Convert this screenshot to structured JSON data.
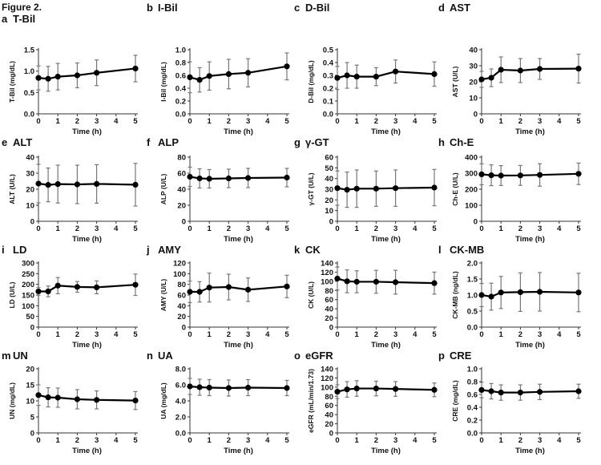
{
  "figure_label": "Figure 2.",
  "chart_data": [
    {
      "type": "line",
      "panel": "a",
      "title": "T-Bil",
      "ylabel": "T-Bil (mg/dL)",
      "xlabel": "Time (h)",
      "x": [
        0,
        0.5,
        1,
        2,
        3,
        5
      ],
      "xticks": [
        "0",
        "1",
        "2",
        "3",
        "4",
        "5"
      ],
      "ylim": [
        0,
        1.5
      ],
      "yticks": [
        "0.0",
        "0.5",
        "1.0",
        "1.5"
      ],
      "values": [
        0.84,
        0.82,
        0.87,
        0.9,
        0.96,
        1.06
      ],
      "error": [
        0.28,
        0.29,
        0.31,
        0.29,
        0.3,
        0.31
      ]
    },
    {
      "type": "line",
      "panel": "b",
      "title": "I-Bil",
      "ylabel": "I-Bil (mg/dL)",
      "xlabel": "Time (h)",
      "x": [
        0,
        0.5,
        1,
        2,
        3,
        5
      ],
      "xticks": [
        "0",
        "1",
        "2",
        "3",
        "4",
        "5"
      ],
      "ylim": [
        0,
        1.0
      ],
      "yticks": [
        "0.0",
        "0.2",
        "0.4",
        "0.6",
        "0.8",
        "1.0"
      ],
      "values": [
        0.57,
        0.53,
        0.59,
        0.62,
        0.64,
        0.74
      ],
      "error": [
        0.24,
        0.19,
        0.22,
        0.23,
        0.22,
        0.21
      ]
    },
    {
      "type": "line",
      "panel": "c",
      "title": "D-Bil",
      "ylabel": "D-Bil (mg/dL)",
      "xlabel": "Time (h)",
      "x": [
        0,
        0.5,
        1,
        2,
        3,
        5
      ],
      "xticks": [
        "0",
        "1",
        "2",
        "3",
        "4",
        "5"
      ],
      "ylim": [
        0,
        0.5
      ],
      "yticks": [
        "0.0",
        "0.1",
        "0.2",
        "0.3",
        "0.4",
        "0.5"
      ],
      "values": [
        0.28,
        0.3,
        0.29,
        0.29,
        0.33,
        0.31
      ],
      "error": [
        0.09,
        0.1,
        0.09,
        0.07,
        0.09,
        0.095
      ]
    },
    {
      "type": "line",
      "panel": "d",
      "title": "AST",
      "ylabel": "AST (U/L)",
      "xlabel": "Time (h)",
      "x": [
        0,
        0.5,
        1,
        2,
        3,
        5
      ],
      "xticks": [
        "0",
        "1",
        "2",
        "3",
        "4",
        "5"
      ],
      "ylim": [
        0,
        40
      ],
      "yticks": [
        "0",
        "10",
        "20",
        "30",
        "40"
      ],
      "values": [
        21.5,
        22.5,
        27.5,
        27,
        28,
        28.2
      ],
      "error": [
        5,
        5.5,
        8,
        7.5,
        6.5,
        9
      ]
    },
    {
      "type": "line",
      "panel": "e",
      "title": "ALT",
      "ylabel": "ALT (U/L)",
      "xlabel": "Time (h)",
      "x": [
        0,
        0.5,
        1,
        2,
        3,
        5
      ],
      "xticks": [
        "0",
        "1",
        "2",
        "3",
        "4",
        "5"
      ],
      "ylim": [
        0,
        40
      ],
      "yticks": [
        "0",
        "10",
        "20",
        "30",
        "40"
      ],
      "values": [
        23.5,
        22.7,
        23.2,
        23,
        23.3,
        22.8
      ],
      "error": [
        12,
        10.5,
        11.8,
        12,
        12,
        13.3
      ]
    },
    {
      "type": "line",
      "panel": "f",
      "title": "ALP",
      "ylabel": "ALP (U/L)",
      "xlabel": "Time (h)",
      "x": [
        0,
        0.5,
        1,
        2,
        3,
        5
      ],
      "xticks": [
        "0",
        "1",
        "2",
        "3",
        "4",
        "5"
      ],
      "ylim": [
        0,
        80
      ],
      "yticks": [
        "0",
        "20",
        "40",
        "60",
        "80"
      ],
      "values": [
        55.5,
        53.5,
        53,
        53.5,
        54,
        54.5
      ],
      "error": [
        12,
        12,
        11.5,
        11.5,
        12,
        11.5
      ]
    },
    {
      "type": "line",
      "panel": "g",
      "title": "γ-GT",
      "ylabel": "γ-GT (U/L)",
      "xlabel": "Time (h)",
      "x": [
        0,
        0.5,
        1,
        2,
        3,
        5
      ],
      "xticks": [
        "0",
        "1",
        "2",
        "3",
        "4",
        "5"
      ],
      "ylim": [
        0,
        60
      ],
      "yticks": [
        "0",
        "10",
        "20",
        "30",
        "40",
        "50",
        "60"
      ],
      "values": [
        31,
        29.5,
        30.5,
        30.5,
        31,
        31.5
      ],
      "error": [
        16,
        16.5,
        17.5,
        16.5,
        17,
        17
      ]
    },
    {
      "type": "line",
      "panel": "h",
      "title": "Ch-E",
      "ylabel": "Ch-E (U/L)",
      "xlabel": "Time (h)",
      "x": [
        0,
        0.5,
        1,
        2,
        3,
        5
      ],
      "xticks": [
        "0",
        "1",
        "2",
        "3",
        "4",
        "5"
      ],
      "ylim": [
        0,
        400
      ],
      "yticks": [
        "0",
        "100",
        "200",
        "300",
        "400"
      ],
      "values": [
        293,
        287,
        285,
        286,
        289,
        296
      ],
      "error": [
        65,
        65,
        62,
        62,
        70,
        67
      ]
    },
    {
      "type": "line",
      "panel": "i",
      "title": "LD",
      "ylabel": "LD (U/L)",
      "xlabel": "Time (h)",
      "x": [
        0,
        0.5,
        1,
        2,
        3,
        5
      ],
      "xticks": [
        "0",
        "1",
        "2",
        "3",
        "4",
        "5"
      ],
      "ylim": [
        0,
        300
      ],
      "yticks": [
        "0",
        "50",
        "100",
        "150",
        "200",
        "250",
        "300"
      ],
      "values": [
        167,
        167,
        194,
        188,
        186,
        198
      ],
      "error": [
        18,
        25,
        38,
        25,
        30,
        50
      ]
    },
    {
      "type": "line",
      "panel": "j",
      "title": "AMY",
      "ylabel": "AMY (U/L)",
      "xlabel": "Time (h)",
      "x": [
        0,
        0.5,
        1,
        2,
        3,
        5
      ],
      "xticks": [
        "0",
        "1",
        "2",
        "3",
        "4",
        "5"
      ],
      "ylim": [
        0,
        120
      ],
      "yticks": [
        "0",
        "20",
        "40",
        "60",
        "80",
        "100",
        "120"
      ],
      "values": [
        66,
        66,
        74,
        75,
        70,
        76
      ],
      "error": [
        20,
        19,
        27,
        24,
        22,
        21
      ]
    },
    {
      "type": "line",
      "panel": "k",
      "title": "CK",
      "ylabel": "CK (U/L)",
      "xlabel": "Time (h)",
      "x": [
        0,
        0.5,
        1,
        2,
        3,
        5
      ],
      "xticks": [
        "0",
        "1",
        "2",
        "3",
        "4",
        "5"
      ],
      "ylim": [
        0,
        140
      ],
      "yticks": [
        "0",
        "20",
        "40",
        "60",
        "80",
        "100",
        "120",
        "140"
      ],
      "values": [
        106,
        100,
        99,
        99,
        98,
        96
      ],
      "error": [
        25,
        25,
        24,
        25,
        26,
        24
      ]
    },
    {
      "type": "line",
      "panel": "l",
      "title": "CK-MB",
      "ylabel": "CK-MB (ng/dL)",
      "xlabel": "Time (h)",
      "x": [
        0,
        0.5,
        1,
        2,
        3,
        5
      ],
      "xticks": [
        "0",
        "1",
        "2",
        "3",
        "4",
        "5"
      ],
      "ylim": [
        0,
        2.0
      ],
      "yticks": [
        "0.0",
        "0.5",
        "1.0",
        "1.5",
        "2.0"
      ],
      "values": [
        1.0,
        0.95,
        1.08,
        1.09,
        1.1,
        1.08
      ],
      "error": [
        0.36,
        0.42,
        0.5,
        0.6,
        0.6,
        0.6
      ]
    },
    {
      "type": "line",
      "panel": "m",
      "title": "UN",
      "ylabel": "UN (mg/dL)",
      "xlabel": "Time (h)",
      "x": [
        0,
        0.5,
        1,
        2,
        3,
        5
      ],
      "xticks": [
        "0",
        "1",
        "2",
        "3",
        "4",
        "5"
      ],
      "ylim": [
        0,
        20
      ],
      "yticks": [
        "0",
        "5",
        "10",
        "15",
        "20"
      ],
      "values": [
        11.8,
        11.1,
        11,
        10.5,
        10.3,
        10.1
      ],
      "error": [
        3.2,
        3,
        3,
        3,
        2.8,
        2.8
      ]
    },
    {
      "type": "line",
      "panel": "n",
      "title": "UA",
      "ylabel": "UA (mg/dL)",
      "xlabel": "Time (h)",
      "x": [
        0,
        0.5,
        1,
        2,
        3,
        5
      ],
      "xticks": [
        "0",
        "1",
        "2",
        "3",
        "4",
        "5"
      ],
      "ylim": [
        0,
        8
      ],
      "yticks": [
        "0.0",
        "2.0",
        "4.0",
        "6.0",
        "8.0"
      ],
      "values": [
        5.8,
        5.7,
        5.65,
        5.6,
        5.65,
        5.6
      ],
      "error": [
        1.0,
        1.0,
        1.0,
        1.0,
        1.0,
        0.95
      ]
    },
    {
      "type": "line",
      "panel": "o",
      "title": "eGFR",
      "ylabel": "eGFR (mL/min/1.73)",
      "xlabel": "Time (h)",
      "x": [
        0,
        0.5,
        1,
        2,
        3,
        5
      ],
      "xticks": [
        "0",
        "1",
        "2",
        "3",
        "4",
        "5"
      ],
      "ylim": [
        0,
        140
      ],
      "yticks": [
        "0",
        "20",
        "40",
        "60",
        "80",
        "100",
        "120",
        "140"
      ],
      "values": [
        90,
        95,
        97,
        97,
        96,
        94
      ],
      "error": [
        15,
        17,
        17,
        16,
        16,
        15
      ]
    },
    {
      "type": "line",
      "panel": "p",
      "title": "CRE",
      "ylabel": "CRE (mg/dL)",
      "xlabel": "Time (h)",
      "x": [
        0,
        0.5,
        1,
        2,
        3,
        5
      ],
      "xticks": [
        "0",
        "1",
        "2",
        "3",
        "4",
        "5"
      ],
      "ylim": [
        0,
        1.0
      ],
      "yticks": [
        "0.0",
        "0.2",
        "0.4",
        "0.6",
        "0.8",
        "1.0"
      ],
      "values": [
        0.67,
        0.65,
        0.63,
        0.63,
        0.64,
        0.65
      ],
      "error": [
        0.12,
        0.12,
        0.12,
        0.12,
        0.12,
        0.11
      ]
    }
  ]
}
